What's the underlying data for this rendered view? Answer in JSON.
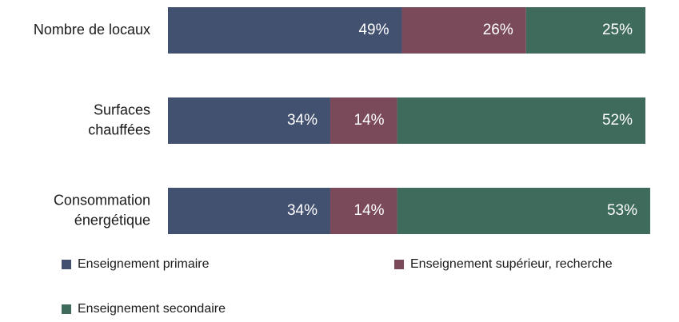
{
  "chart_data": {
    "type": "stacked-bar-horizontal",
    "categories": [
      "Nombre de locaux",
      "Surfaces\nchauffées",
      "Consommation\nénergétique"
    ],
    "series": [
      {
        "name": "Enseignement primaire",
        "color": "#435170",
        "values": [
          49,
          34,
          34
        ],
        "value_labels": [
          "49%",
          "34%",
          "34%"
        ]
      },
      {
        "name": "Enseignement supérieur, recherche",
        "color": "#7b4a5a",
        "values": [
          26,
          14,
          14
        ],
        "value_labels": [
          "26%",
          "14%",
          "14%"
        ]
      },
      {
        "name": "Enseignement secondaire",
        "color": "#3f6b5c",
        "values": [
          25,
          52,
          53
        ],
        "value_labels": [
          "25%",
          "52%",
          "53%"
        ]
      }
    ],
    "xlim": [
      0,
      100
    ]
  }
}
